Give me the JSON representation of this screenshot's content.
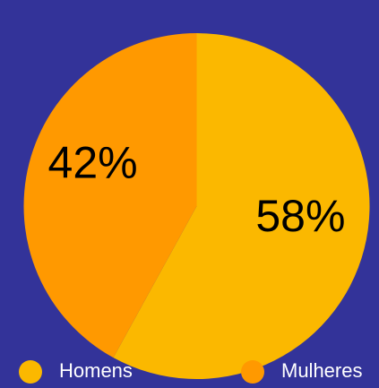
{
  "chart_data": {
    "type": "pie",
    "categories": [
      "Homens",
      "Mulheres"
    ],
    "values": [
      58,
      42
    ],
    "value_labels": [
      "58%",
      "42%"
    ],
    "colors": [
      "#fbb800",
      "#ff9900"
    ]
  }
}
